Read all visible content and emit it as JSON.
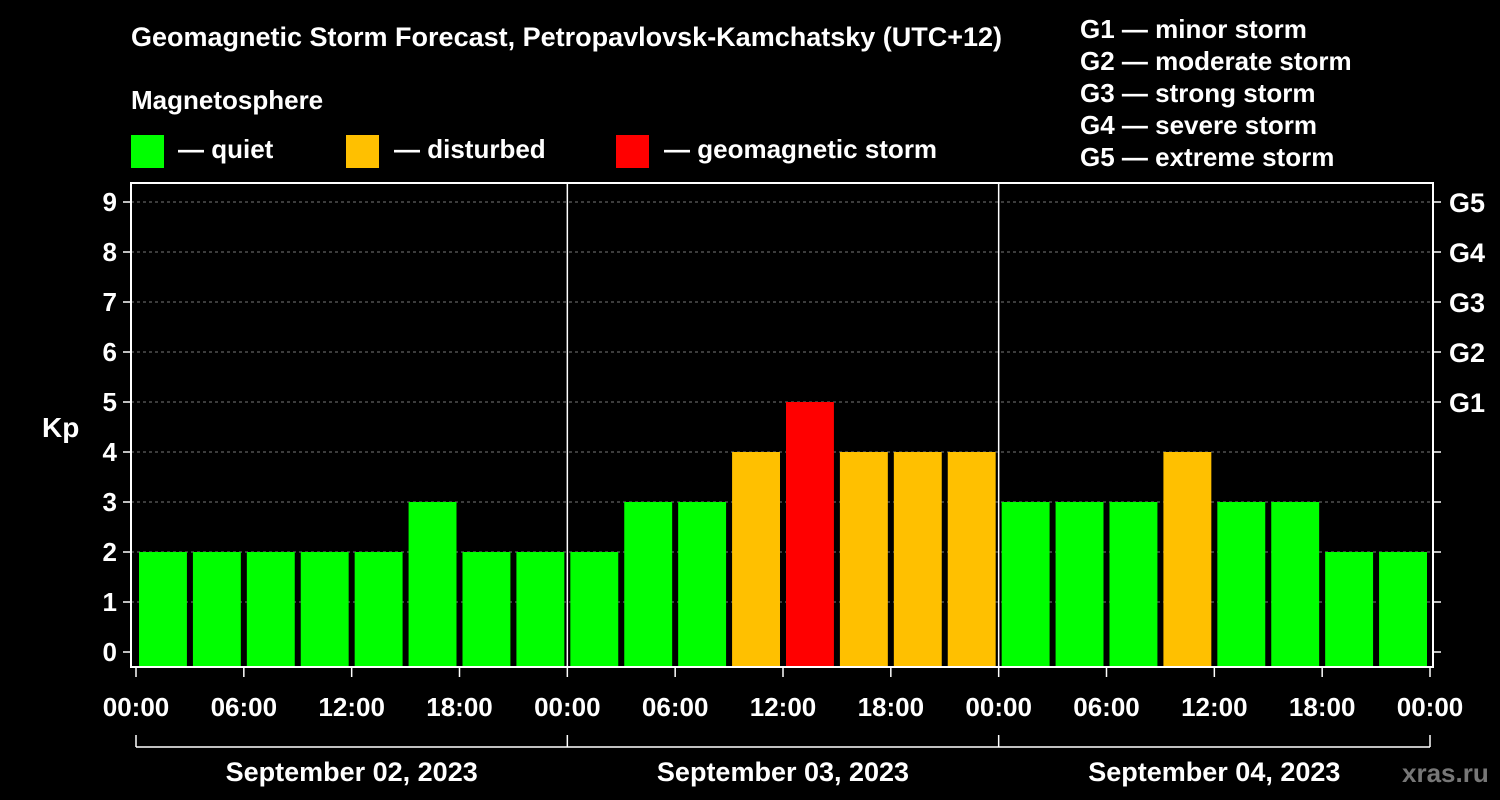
{
  "colors": {
    "quiet": "#00ff00",
    "disturbed": "#ffc000",
    "storm": "#ff0000",
    "background": "#000000",
    "grid": "#777777"
  },
  "legend": {
    "heading": "Magnetosphere",
    "items": [
      {
        "label": "— quiet",
        "color": "#00ff00"
      },
      {
        "label": "— disturbed",
        "color": "#ffc000"
      },
      {
        "label": "— geomagnetic storm",
        "color": "#ff0000"
      }
    ],
    "g_levels": [
      "G1 — minor storm",
      "G2 — moderate storm",
      "G3 — strong storm",
      "G4 — severe storm",
      "G5 — extreme storm"
    ]
  },
  "watermark": "xras.ru",
  "chart_data": {
    "type": "bar",
    "title": "Geomagnetic Storm Forecast, Petropavlovsk-Kamchatsky (UTC+12)",
    "ylabel": "Kp",
    "ylim": [
      0,
      9
    ],
    "yticks": [
      "0",
      "1",
      "2",
      "3",
      "4",
      "5",
      "6",
      "7",
      "8",
      "9"
    ],
    "right_ticks": [
      {
        "kp": 5,
        "label": "G1"
      },
      {
        "kp": 6,
        "label": "G2"
      },
      {
        "kp": 7,
        "label": "G3"
      },
      {
        "kp": 8,
        "label": "G4"
      },
      {
        "kp": 9,
        "label": "G5"
      }
    ],
    "grid": true,
    "xtick_labels": [
      "00:00",
      "06:00",
      "12:00",
      "18:00",
      "00:00",
      "06:00",
      "12:00",
      "18:00",
      "00:00",
      "06:00",
      "12:00",
      "18:00",
      "00:00"
    ],
    "days": [
      "September 02, 2023",
      "September 03, 2023",
      "September 04, 2023"
    ],
    "values": [
      2,
      2,
      2,
      2,
      2,
      3,
      2,
      2,
      2,
      3,
      3,
      4,
      5,
      4,
      4,
      4,
      3,
      3,
      3,
      4,
      3,
      3,
      2,
      2
    ],
    "levels": [
      "quiet",
      "quiet",
      "quiet",
      "quiet",
      "quiet",
      "quiet",
      "quiet",
      "quiet",
      "quiet",
      "quiet",
      "quiet",
      "disturbed",
      "storm",
      "disturbed",
      "disturbed",
      "disturbed",
      "quiet",
      "quiet",
      "quiet",
      "disturbed",
      "quiet",
      "quiet",
      "quiet",
      "quiet"
    ]
  }
}
